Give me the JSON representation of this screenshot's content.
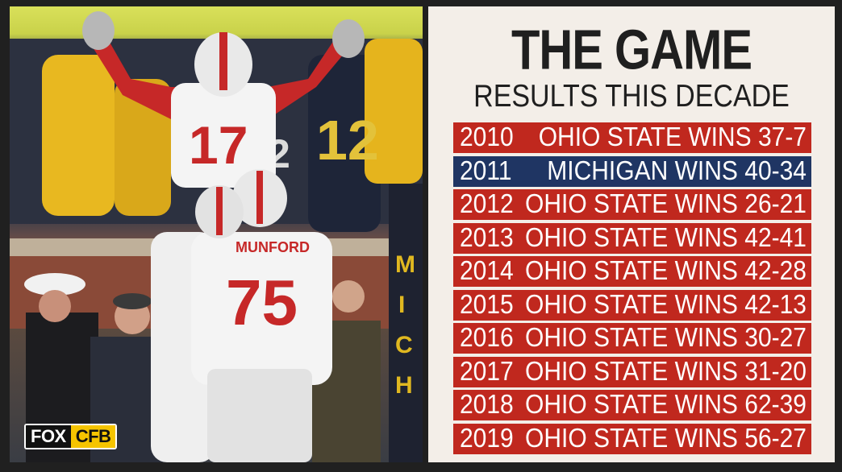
{
  "graphic": {
    "title": "THE GAME",
    "subtitle": "RESULTS THIS DECADE",
    "brand": {
      "left": "FOX",
      "right": "CFB"
    },
    "colors": {
      "ohio_state": "#c0281e",
      "michigan": "#1f3563",
      "background": "#f3eee8"
    },
    "results": [
      {
        "year": "2010",
        "result": "OHIO STATE WINS 37-7",
        "winner": "ohio_state"
      },
      {
        "year": "2011",
        "result": "MICHIGAN WINS 40-34",
        "winner": "michigan"
      },
      {
        "year": "2012",
        "result": "OHIO STATE WINS 26-21",
        "winner": "ohio_state"
      },
      {
        "year": "2013",
        "result": "OHIO STATE WINS 42-41",
        "winner": "ohio_state"
      },
      {
        "year": "2014",
        "result": "OHIO STATE WINS 42-28",
        "winner": "ohio_state"
      },
      {
        "year": "2015",
        "result": "OHIO STATE WINS 42-13",
        "winner": "ohio_state"
      },
      {
        "year": "2016",
        "result": "OHIO STATE WINS 30-27",
        "winner": "ohio_state"
      },
      {
        "year": "2017",
        "result": "OHIO STATE WINS 31-20",
        "winner": "ohio_state"
      },
      {
        "year": "2018",
        "result": "OHIO STATE WINS 62-39",
        "winner": "ohio_state"
      },
      {
        "year": "2019",
        "result": "OHIO STATE WINS 56-27",
        "winner": "ohio_state"
      }
    ]
  },
  "photo": {
    "jersey_numbers": [
      "17",
      "75",
      "12",
      "2"
    ],
    "nameplate": "MUNFORD"
  }
}
